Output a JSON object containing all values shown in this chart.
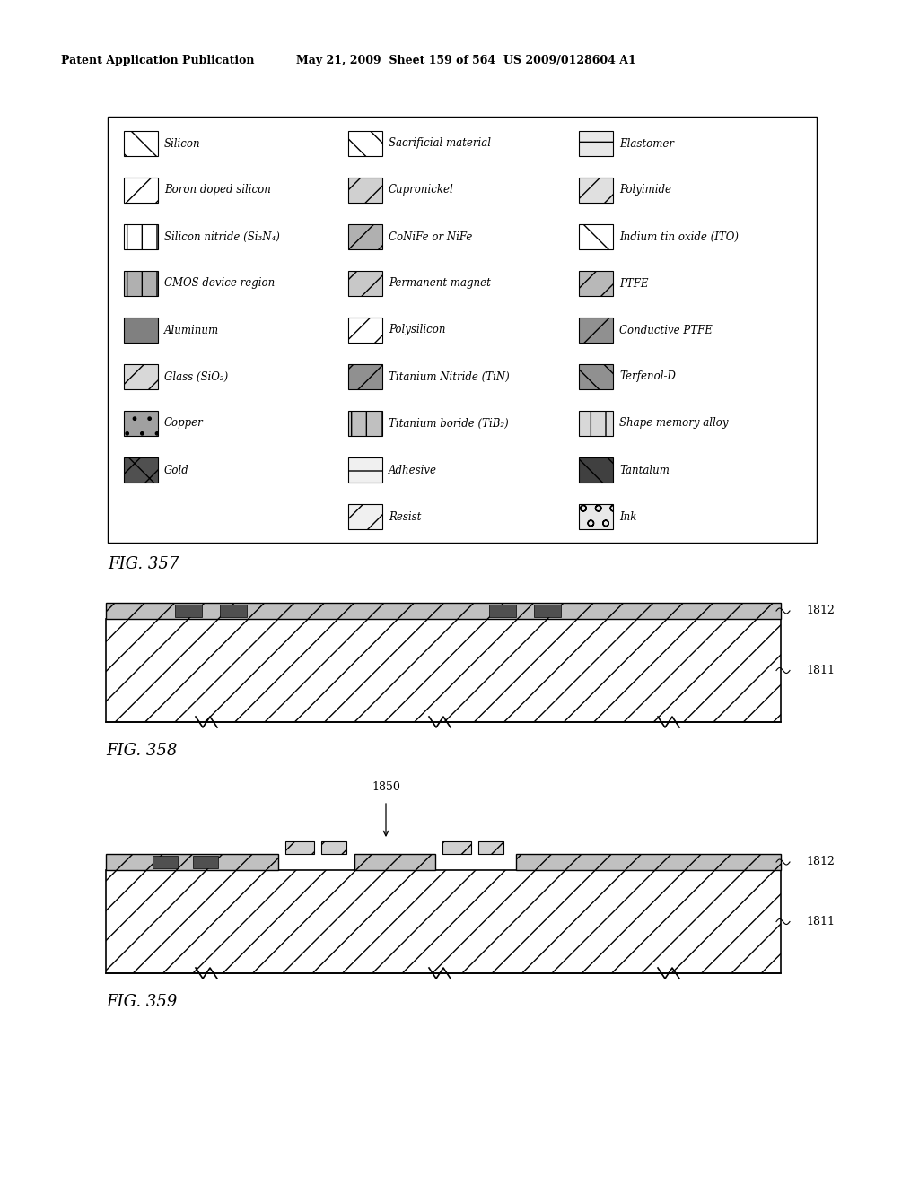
{
  "header_left": "Patent Application Publication",
  "header_mid": "May 21, 2009  Sheet 159 of 564  US 2009/0128604 A1",
  "fig357_label": "FIG. 357",
  "fig358_label": "FIG. 358",
  "fig359_label": "FIG. 359",
  "page_bg": "#ffffff",
  "col0_labels": [
    "Silicon",
    "Boron doped silicon",
    "Silicon nitride (Si₃N₄)",
    "CMOS device region",
    "Aluminum",
    "Glass (SiO₂)",
    "Copper",
    "Gold"
  ],
  "col1_labels": [
    "Sacrificial material",
    "Cupronickel",
    "CoNiFe or NiFe",
    "Permanent magnet",
    "Polysilicon",
    "Titanium Nitride (TiN)",
    "Titanium boride (TiB₂)",
    "Adhesive",
    "Resist"
  ],
  "col2_labels": [
    "Elastomer",
    "Polyimide",
    "Indium tin oxide (ITO)",
    "PTFE",
    "Conductive PTFE",
    "Terfenol-D",
    "Shape memory alloy",
    "Tantalum",
    "Ink"
  ],
  "label_1812": "1812",
  "label_1811": "1811",
  "label_1850": "1850"
}
